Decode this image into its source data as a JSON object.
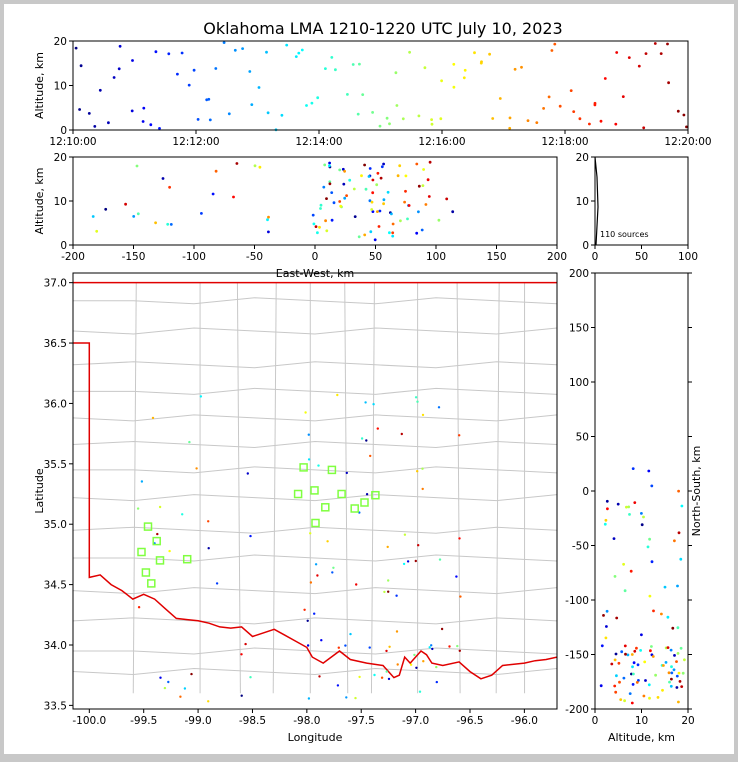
{
  "title": "Oklahoma LMA 1210-1220 UTC July 10, 2023",
  "source_count_label": "110 sources",
  "colors": {
    "frame_bg": "#c8c8c8",
    "axes_bg": "#ffffff",
    "state_border": "#e00000",
    "county_lines": "#c8c8c8",
    "station_marker": "#80ff40"
  },
  "chart_data": [
    {
      "id": "time-height",
      "type": "scatter",
      "ylabel": "Altitude, km",
      "xlim": [
        "12:10:00",
        "12:20:00"
      ],
      "ylim": [
        0,
        20
      ],
      "x_ticks": [
        "12:10:00",
        "12:12:00",
        "12:14:00",
        "12:16:00",
        "12:18:00",
        "12:20:00"
      ],
      "y_ticks": [
        0,
        10,
        20
      ],
      "color_by": "time"
    },
    {
      "id": "ew-height",
      "type": "scatter",
      "xlabel": "East-West, km",
      "ylabel": "Altitude, km",
      "xlim": [
        -200,
        200
      ],
      "ylim": [
        0,
        20
      ],
      "x_ticks": [
        -200,
        -150,
        -100,
        -50,
        0,
        50,
        100,
        150,
        200
      ],
      "y_ticks": [
        0,
        10,
        20
      ]
    },
    {
      "id": "height-histogram",
      "type": "scatter",
      "xlim": [
        0,
        100
      ],
      "ylim": [
        0,
        20
      ],
      "x_ticks": [
        0,
        50,
        100
      ],
      "y_ticks": [
        0,
        10,
        20
      ]
    },
    {
      "id": "plan-view",
      "type": "scatter",
      "xlabel": "Longitude",
      "ylabel": "Latitude",
      "xlim": [
        -100.15,
        -95.7
      ],
      "ylim": [
        33.47,
        37.08
      ],
      "x_ticks": [
        "-100.0",
        "-99.5",
        "-99.0",
        "-98.5",
        "-98.0",
        "-97.5",
        "-97.0",
        "-96.5",
        "-96.0"
      ],
      "y_ticks": [
        "33.5",
        "34.0",
        "34.5",
        "35.0",
        "35.5",
        "36.0",
        "36.5",
        "37.0"
      ],
      "stations": [
        {
          "lon": -98.03,
          "lat": 35.47
        },
        {
          "lon": -97.77,
          "lat": 35.45
        },
        {
          "lon": -98.08,
          "lat": 35.25
        },
        {
          "lon": -97.93,
          "lat": 35.28
        },
        {
          "lon": -97.68,
          "lat": 35.25
        },
        {
          "lon": -97.37,
          "lat": 35.24
        },
        {
          "lon": -97.47,
          "lat": 35.18
        },
        {
          "lon": -97.83,
          "lat": 35.14
        },
        {
          "lon": -97.56,
          "lat": 35.13
        },
        {
          "lon": -97.92,
          "lat": 35.01
        },
        {
          "lon": -99.46,
          "lat": 34.98
        },
        {
          "lon": -99.38,
          "lat": 34.86
        },
        {
          "lon": -99.52,
          "lat": 34.77
        },
        {
          "lon": -99.35,
          "lat": 34.7
        },
        {
          "lon": -99.1,
          "lat": 34.71
        },
        {
          "lon": -99.48,
          "lat": 34.6
        },
        {
          "lon": -99.43,
          "lat": 34.51
        }
      ]
    },
    {
      "id": "height-ns",
      "type": "scatter",
      "xlabel": "Altitude, km",
      "ylabel": "North-South, km",
      "xlim": [
        0,
        20
      ],
      "ylim": [
        -200,
        200
      ],
      "x_ticks": [
        0,
        10,
        20
      ],
      "y_ticks": [
        -200,
        -150,
        -100,
        -50,
        0,
        50,
        100,
        150,
        200
      ]
    }
  ]
}
